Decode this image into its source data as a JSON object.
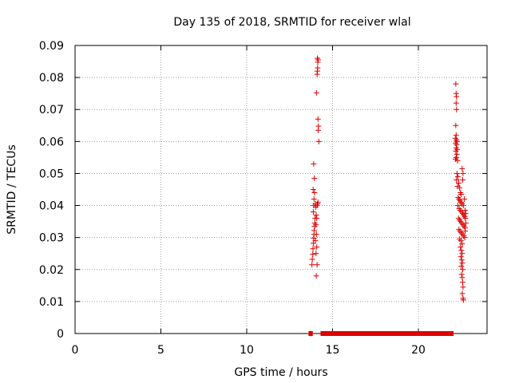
{
  "chart_data": {
    "type": "scatter",
    "title": "Day 135 of 2018, SRMTID for receiver wlal",
    "xlabel": "GPS time / hours",
    "ylabel": "SRMTID / TECUs",
    "xlim": [
      0,
      24
    ],
    "ylim": [
      0,
      0.09
    ],
    "x_ticks": [
      "0",
      "5",
      "10",
      "15",
      "20"
    ],
    "x_tick_values": [
      0,
      5,
      10,
      15,
      20
    ],
    "y_ticks": [
      "0",
      "0.01",
      "0.02",
      "0.03",
      "0.04",
      "0.05",
      "0.06",
      "0.07",
      "0.08",
      "0.09"
    ],
    "y_tick_values": [
      0,
      0.01,
      0.02,
      0.03,
      0.04,
      0.05,
      0.06,
      0.07,
      0.08,
      0.09
    ],
    "grid": true,
    "legend": "none",
    "marker": "plus",
    "color": "#dd0000",
    "series": [
      {
        "points": [
          [
            13.72,
            0.0
          ],
          [
            13.8,
            0.0215
          ],
          [
            13.82,
            0.0232
          ],
          [
            13.85,
            0.0248
          ],
          [
            13.86,
            0.0265
          ],
          [
            13.88,
            0.0282
          ],
          [
            13.9,
            0.0298
          ],
          [
            13.92,
            0.031
          ],
          [
            13.93,
            0.0322
          ],
          [
            13.95,
            0.0335
          ],
          [
            13.96,
            0.0345
          ],
          [
            13.98,
            0.036
          ],
          [
            13.88,
            0.038
          ],
          [
            13.9,
            0.04
          ],
          [
            13.92,
            0.042
          ],
          [
            13.95,
            0.044
          ],
          [
            13.87,
            0.045
          ],
          [
            13.94,
            0.0485
          ],
          [
            13.9,
            0.053
          ],
          [
            14.0,
            0.0405
          ],
          [
            14.02,
            0.0395
          ],
          [
            14.05,
            0.037
          ],
          [
            14.03,
            0.034
          ],
          [
            14.06,
            0.031
          ],
          [
            14.0,
            0.029
          ],
          [
            14.08,
            0.027
          ],
          [
            14.04,
            0.025
          ],
          [
            14.1,
            0.0215
          ],
          [
            14.05,
            0.018
          ],
          [
            14.08,
            0.036
          ],
          [
            14.1,
            0.04
          ],
          [
            14.12,
            0.0405
          ],
          [
            14.15,
            0.041
          ],
          [
            14.06,
            0.0752
          ],
          [
            14.1,
            0.081
          ],
          [
            14.12,
            0.082
          ],
          [
            14.13,
            0.083
          ],
          [
            14.14,
            0.0848
          ],
          [
            14.16,
            0.0855
          ],
          [
            14.12,
            0.086
          ],
          [
            14.15,
            0.067
          ],
          [
            14.18,
            0.0648
          ],
          [
            14.16,
            0.0635
          ],
          [
            14.2,
            0.06
          ],
          [
            22.18,
            0.078
          ],
          [
            22.2,
            0.075
          ],
          [
            22.22,
            0.074
          ],
          [
            22.2,
            0.072
          ],
          [
            22.22,
            0.07
          ],
          [
            22.18,
            0.065
          ],
          [
            22.2,
            0.062
          ],
          [
            22.15,
            0.061
          ],
          [
            22.22,
            0.0605
          ],
          [
            22.25,
            0.06
          ],
          [
            22.17,
            0.0595
          ],
          [
            22.23,
            0.059
          ],
          [
            22.2,
            0.058
          ],
          [
            22.26,
            0.0575
          ],
          [
            22.18,
            0.057
          ],
          [
            22.24,
            0.056
          ],
          [
            22.21,
            0.055
          ],
          [
            22.16,
            0.0545
          ],
          [
            22.28,
            0.054
          ],
          [
            22.25,
            0.05
          ],
          [
            22.3,
            0.049
          ],
          [
            22.22,
            0.048
          ],
          [
            22.35,
            0.047
          ],
          [
            22.28,
            0.046
          ],
          [
            22.4,
            0.0455
          ],
          [
            22.45,
            0.044
          ],
          [
            22.5,
            0.0435
          ],
          [
            22.55,
            0.0515
          ],
          [
            22.6,
            0.05
          ],
          [
            22.58,
            0.048
          ],
          [
            22.32,
            0.0425
          ],
          [
            22.36,
            0.042
          ],
          [
            22.42,
            0.0415
          ],
          [
            22.48,
            0.041
          ],
          [
            22.55,
            0.0405
          ],
          [
            22.62,
            0.04
          ],
          [
            22.68,
            0.042
          ],
          [
            22.3,
            0.04
          ],
          [
            22.38,
            0.039
          ],
          [
            22.44,
            0.0385
          ],
          [
            22.52,
            0.038
          ],
          [
            22.58,
            0.0375
          ],
          [
            22.64,
            0.037
          ],
          [
            22.7,
            0.0365
          ],
          [
            22.34,
            0.036
          ],
          [
            22.4,
            0.0355
          ],
          [
            22.46,
            0.035
          ],
          [
            22.52,
            0.0345
          ],
          [
            22.6,
            0.034
          ],
          [
            22.66,
            0.0335
          ],
          [
            22.72,
            0.033
          ],
          [
            22.36,
            0.0325
          ],
          [
            22.42,
            0.032
          ],
          [
            22.5,
            0.0315
          ],
          [
            22.56,
            0.031
          ],
          [
            22.64,
            0.0305
          ],
          [
            22.7,
            0.03
          ],
          [
            22.4,
            0.0295
          ],
          [
            22.48,
            0.029
          ],
          [
            22.55,
            0.028
          ],
          [
            22.45,
            0.027
          ],
          [
            22.5,
            0.026
          ],
          [
            22.55,
            0.025
          ],
          [
            22.48,
            0.024
          ],
          [
            22.52,
            0.023
          ],
          [
            22.56,
            0.022
          ],
          [
            22.5,
            0.021
          ],
          [
            22.58,
            0.02
          ],
          [
            22.52,
            0.0185
          ],
          [
            22.55,
            0.0175
          ],
          [
            22.58,
            0.016
          ],
          [
            22.6,
            0.0145
          ],
          [
            22.56,
            0.0125
          ],
          [
            22.6,
            0.011
          ],
          [
            22.62,
            0.0105
          ],
          [
            22.72,
            0.0385
          ],
          [
            22.75,
            0.0375
          ],
          [
            22.74,
            0.036
          ],
          [
            22.76,
            0.0345
          ],
          [
            22.73,
            0.032
          ]
        ],
        "zero_bars": [
          [
            13.6,
            13.85
          ],
          [
            14.3,
            22.05
          ]
        ]
      }
    ]
  }
}
